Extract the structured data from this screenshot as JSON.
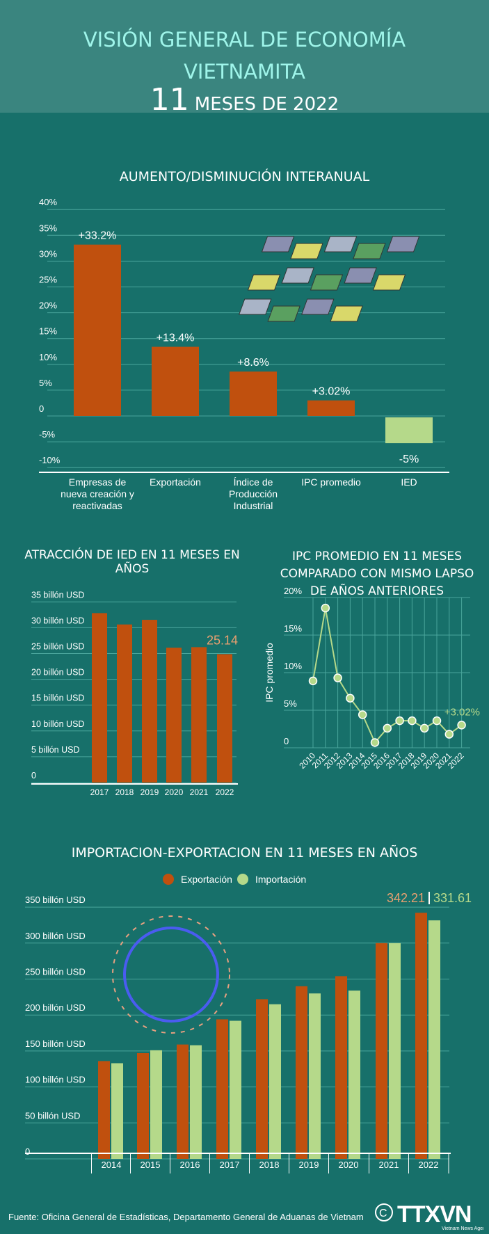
{
  "header": {
    "title_line1": "VISIÓN GENERAL DE ECONOMÍA",
    "title_line2": "VIETNAMITA",
    "months_number": "11",
    "months_text": "MESES DE 2022"
  },
  "colors": {
    "background": "#17706a",
    "header": "#3a857f",
    "bar": "#c0500e",
    "green": "#b5d98a",
    "orange_label": "#e8a070"
  },
  "chart_data": [
    {
      "type": "bar",
      "title": "AUMENTO/DISMINUCIÓN INTERANUAL",
      "categories": [
        "Empresas de nueva creación y reactivadas",
        "Exportación",
        "Índice de Producción Industrial",
        "IPC promedio",
        "IED"
      ],
      "values": [
        33.2,
        13.4,
        8.6,
        3.02,
        -5
      ],
      "data_labels": [
        "+33.2%",
        "+13.4%",
        "+8.6%",
        "+3.02%",
        "-5%"
      ],
      "ylim": [
        -10,
        40
      ],
      "yticks": [
        "-10%",
        "-5%",
        "0",
        "5%",
        "10%",
        "15%",
        "20%",
        "25%",
        "30%",
        "35%",
        "40%"
      ],
      "grid": true,
      "illustration": "factory-illustration"
    },
    {
      "type": "bar",
      "title": "ATRACCIÓN DE IED EN 11 MESES EN AÑOS",
      "categories": [
        "2017",
        "2018",
        "2019",
        "2020",
        "2021",
        "2022"
      ],
      "values": [
        33.1,
        30.9,
        31.8,
        26.4,
        26.5,
        25.14
      ],
      "data_labels": {
        "2022": "25.14"
      },
      "ylim": [
        0,
        35
      ],
      "yticks": [
        "0",
        "5 billón USD",
        "10 billón USD",
        "15 billón USD",
        "20 billón USD",
        "25 billón USD",
        "30 billón USD",
        "35 billón USD"
      ],
      "grid": true
    },
    {
      "type": "line",
      "title": "IPC PROMEDIO EN 11 MESES COMPARADO CON MISMO LAPSO DE AÑOS ANTERIORES",
      "ylabel": "IPC promedio",
      "x": [
        "2010",
        "2011",
        "2012",
        "2013",
        "2014",
        "2015",
        "2016",
        "2017",
        "2018",
        "2019",
        "2020",
        "2021",
        "2022"
      ],
      "values": [
        8.9,
        18.6,
        9.3,
        6.6,
        4.4,
        0.7,
        2.6,
        3.6,
        3.6,
        2.6,
        3.6,
        1.8,
        3.02
      ],
      "data_labels": {
        "2022": "+3.02%"
      },
      "ylim": [
        0,
        20
      ],
      "yticks": [
        "0",
        "5%",
        "10%",
        "15%",
        "20%"
      ],
      "grid": true
    },
    {
      "type": "bar",
      "title": "IMPORTACION-EXPORTACION EN 11 MESES EN AÑOS",
      "categories": [
        "2014",
        "2015",
        "2016",
        "2017",
        "2018",
        "2019",
        "2020",
        "2021",
        "2022"
      ],
      "series": [
        {
          "name": "Exportación",
          "values": [
            136,
            147,
            159,
            194,
            222,
            240,
            254,
            300,
            342.21
          ]
        },
        {
          "name": "Importación",
          "values": [
            133,
            151,
            158,
            192,
            215,
            230,
            234,
            300,
            331.61
          ]
        }
      ],
      "data_labels": {
        "export_2022": "342.21",
        "import_2022": "331.61"
      },
      "ylim": [
        0,
        350
      ],
      "yticks": [
        "0",
        "50 billón USD",
        "100 billón USD",
        "150 billón USD",
        "200 billón USD",
        "250 billón USD",
        "300 billón USD",
        "350 billón USD"
      ],
      "legend": "top-center",
      "grid": true,
      "illustration": "globe-illustration"
    }
  ],
  "footer": {
    "source": "Fuente: Oficina General de Estadísticas, Departamento General de Aduanas de Vietnam",
    "logo_text": "TTXVN",
    "logo_sub": "Vietnam News Agency",
    "copyright": "©"
  }
}
